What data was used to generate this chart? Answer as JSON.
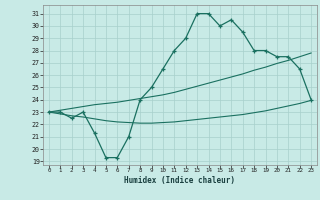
{
  "xlabel": "Humidex (Indice chaleur)",
  "background_color": "#c8eae6",
  "grid_color": "#a8d0cc",
  "line_color": "#1a7060",
  "xlim": [
    -0.5,
    23.5
  ],
  "ylim": [
    18.7,
    31.7
  ],
  "yticks": [
    19,
    20,
    21,
    22,
    23,
    24,
    25,
    26,
    27,
    28,
    29,
    30,
    31
  ],
  "xticks": [
    0,
    1,
    2,
    3,
    4,
    5,
    6,
    7,
    8,
    9,
    10,
    11,
    12,
    13,
    14,
    15,
    16,
    17,
    18,
    19,
    20,
    21,
    22,
    23
  ],
  "y_main": [
    23.0,
    23.0,
    22.5,
    23.0,
    21.3,
    19.3,
    19.3,
    21.0,
    24.0,
    25.0,
    26.5,
    28.0,
    29.0,
    31.0,
    31.0,
    30.0,
    30.5,
    29.5,
    28.0,
    28.0,
    27.5,
    27.5,
    26.5,
    24.0
  ],
  "y_upper": [
    23.0,
    23.15,
    23.3,
    23.45,
    23.6,
    23.7,
    23.8,
    23.95,
    24.1,
    24.25,
    24.4,
    24.6,
    24.85,
    25.1,
    25.35,
    25.6,
    25.85,
    26.1,
    26.4,
    26.65,
    26.95,
    27.2,
    27.5,
    27.8
  ],
  "y_lower": [
    23.0,
    22.85,
    22.7,
    22.6,
    22.45,
    22.3,
    22.2,
    22.15,
    22.1,
    22.1,
    22.15,
    22.2,
    22.3,
    22.4,
    22.5,
    22.6,
    22.7,
    22.8,
    22.95,
    23.1,
    23.3,
    23.5,
    23.7,
    23.95
  ]
}
